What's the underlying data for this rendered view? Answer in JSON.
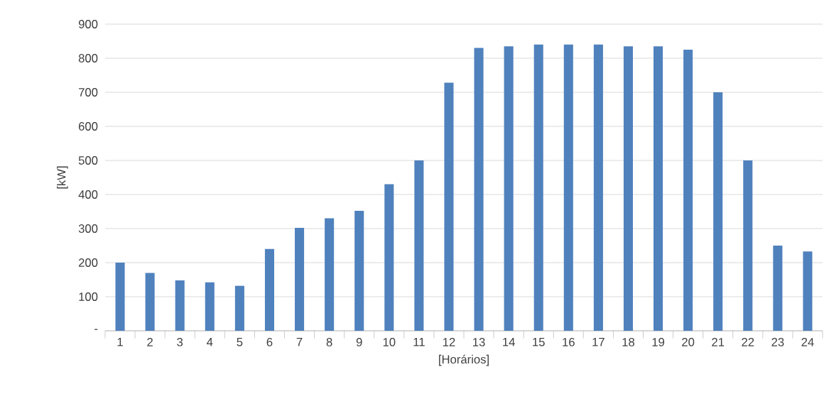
{
  "chart_data": {
    "type": "bar",
    "xlabel": "[Horários]",
    "ylabel": "[kW]",
    "categories": [
      "1",
      "2",
      "3",
      "4",
      "5",
      "6",
      "7",
      "8",
      "9",
      "10",
      "11",
      "12",
      "13",
      "14",
      "15",
      "16",
      "17",
      "18",
      "19",
      "20",
      "21",
      "22",
      "23",
      "24"
    ],
    "values": [
      200,
      170,
      148,
      142,
      132,
      240,
      302,
      330,
      352,
      430,
      500,
      728,
      830,
      835,
      840,
      840,
      840,
      835,
      835,
      825,
      700,
      500,
      250,
      233
    ],
    "color": "#4f81bd",
    "ylim": [
      0,
      900
    ],
    "yticks": [
      {
        "value": 0,
        "label": "-"
      },
      100,
      200,
      300,
      400,
      500,
      600,
      700,
      800,
      900
    ],
    "grid": "y"
  }
}
